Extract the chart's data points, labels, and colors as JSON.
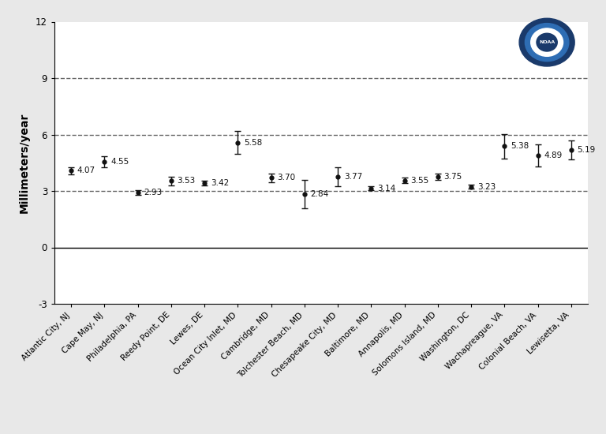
{
  "stations": [
    "Atlantic City, NJ",
    "Cape May, NJ",
    "Philadelphia, PA",
    "Reedy Point, DE",
    "Lewes, DE",
    "Ocean City Inlet, MD",
    "Cambridge, MD",
    "Tolchester Beach, MD",
    "Chesapeake City, MD",
    "Baltimore, MD",
    "Annapolis, MD",
    "Solomons Island, MD",
    "Washington, DC",
    "Wachapreague, VA",
    "Colonial Beach, VA",
    "Lewisetta, VA"
  ],
  "values": [
    4.07,
    4.55,
    2.93,
    3.53,
    3.42,
    5.58,
    3.7,
    2.84,
    3.77,
    3.14,
    3.55,
    3.75,
    3.23,
    5.38,
    4.89,
    5.19
  ],
  "err_low": [
    0.18,
    0.3,
    0.12,
    0.22,
    0.12,
    0.6,
    0.22,
    0.75,
    0.5,
    0.1,
    0.15,
    0.18,
    0.1,
    0.65,
    0.6,
    0.5
  ],
  "err_high": [
    0.18,
    0.3,
    0.12,
    0.22,
    0.12,
    0.6,
    0.22,
    0.75,
    0.5,
    0.1,
    0.15,
    0.18,
    0.1,
    0.65,
    0.6,
    0.5
  ],
  "ylabel": "Millimeters/year",
  "ylim": [
    -3,
    12
  ],
  "yticks": [
    -3,
    0,
    3,
    6,
    9,
    12
  ],
  "dashed_lines": [
    3,
    6,
    9
  ],
  "solid_line": 0,
  "bg_color": "#e8e8e8",
  "plot_bg_color": "#ffffff",
  "point_color": "#111111",
  "dashed_color": "#666666",
  "label_fontsize": 7.5,
  "ylabel_fontsize": 10,
  "tick_fontsize": 8.5,
  "xtick_fontsize": 7.5
}
